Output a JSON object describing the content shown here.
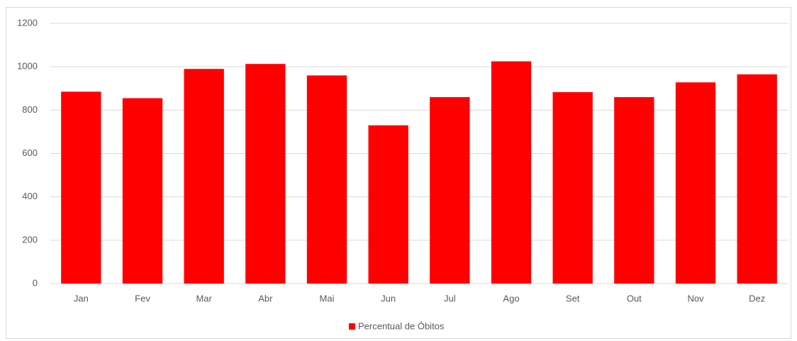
{
  "chart_data": {
    "type": "bar",
    "categories": [
      "Jan",
      "Fev",
      "Mar",
      "Abr",
      "Mai",
      "Jun",
      "Jul",
      "Ago",
      "Set",
      "Out",
      "Nov",
      "Dez"
    ],
    "series": [
      {
        "name": "Percentual de Óbitos",
        "color": "#ff0000",
        "values": [
          885,
          855,
          990,
          1013,
          960,
          730,
          860,
          1025,
          883,
          860,
          928,
          965
        ]
      }
    ],
    "ylim": [
      0,
      1200
    ],
    "yticks": [
      0,
      200,
      400,
      600,
      800,
      1000,
      1200
    ],
    "grid": true,
    "legend": "bottom"
  }
}
